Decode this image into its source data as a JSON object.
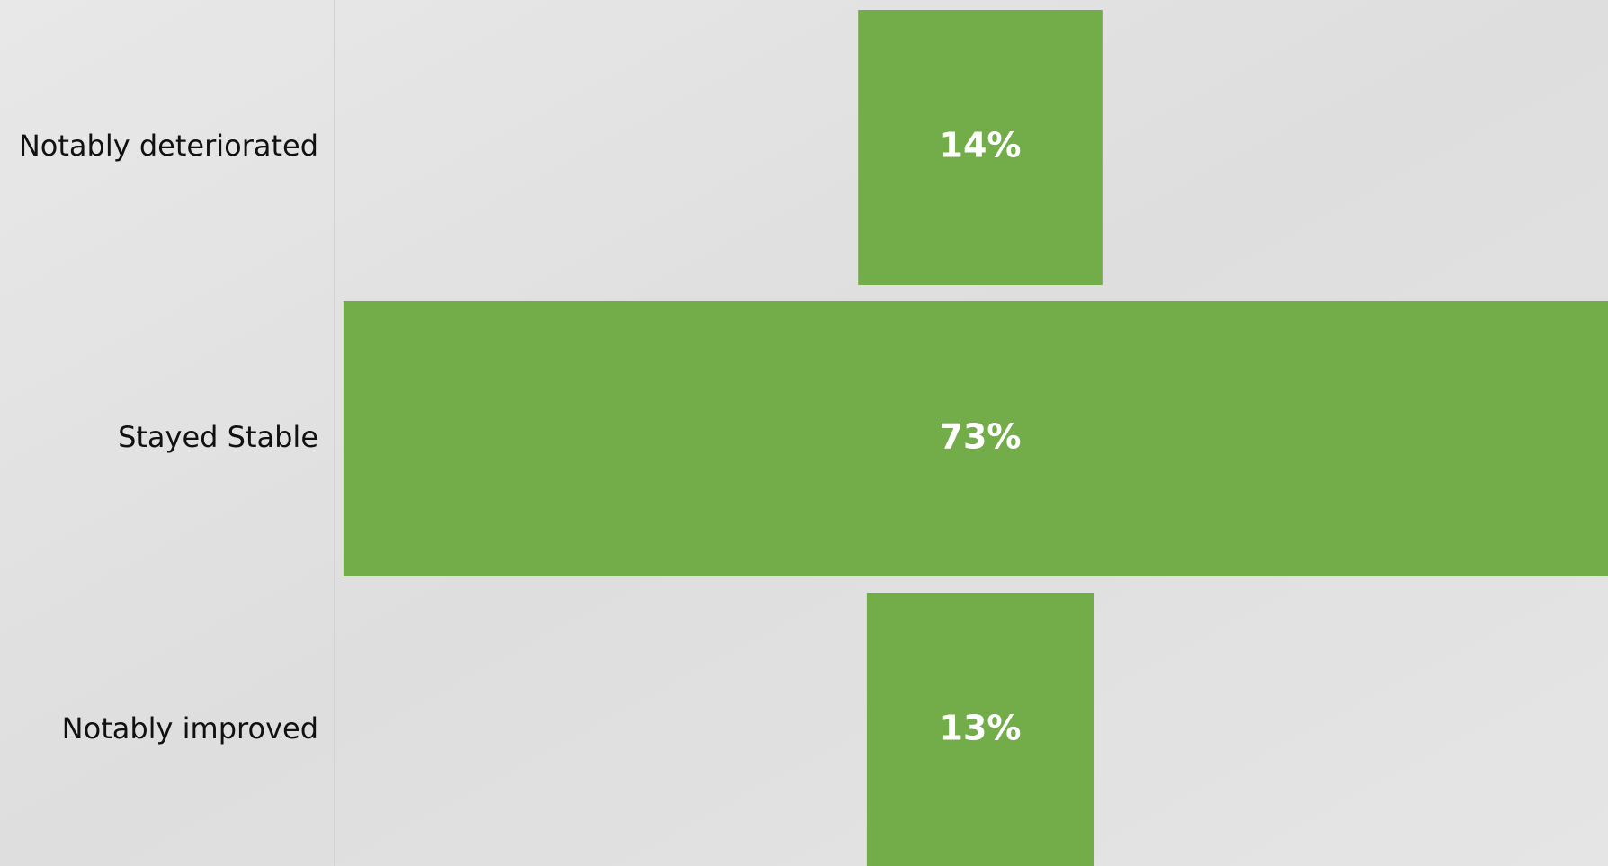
{
  "chart_data": {
    "type": "funnel",
    "categories": [
      "Notably deteriorated",
      "Stayed Stable",
      "Notably improved"
    ],
    "values": [
      14,
      73,
      13
    ],
    "value_labels": [
      "14%",
      "73%",
      "13%"
    ],
    "color": "#72ad4a"
  }
}
